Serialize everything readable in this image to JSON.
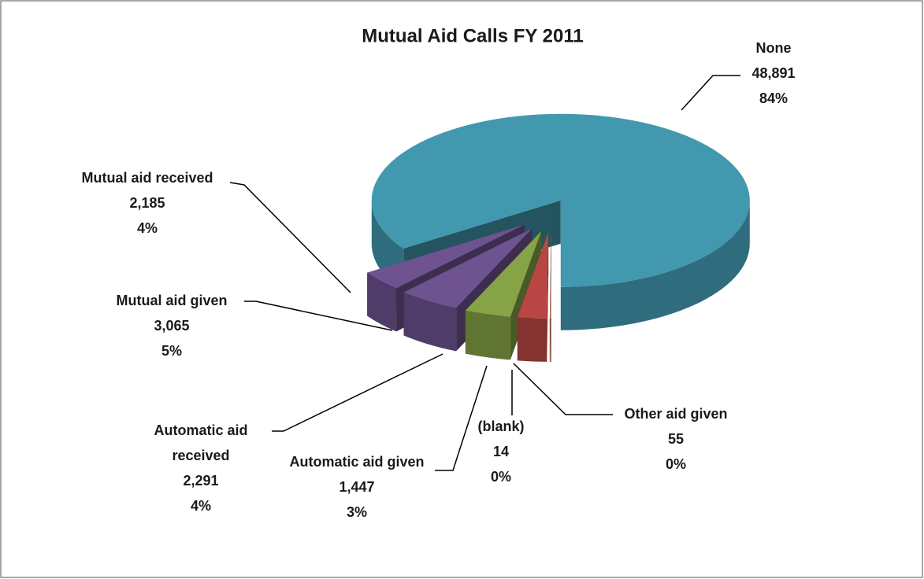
{
  "chart_data": {
    "type": "pie3d",
    "title": "Mutual Aid Calls FY 2011",
    "categories": [
      "None",
      "Other aid given",
      "(blank)",
      "Automatic aid given",
      "Automatic aid received",
      "Mutual aid given",
      "Mutual aid received"
    ],
    "values": [
      48891,
      55,
      14,
      1447,
      2291,
      3065,
      2185
    ],
    "value_labels": [
      "48,891",
      "55",
      "14",
      "1,447",
      "2,291",
      "3,065",
      "2,185"
    ],
    "percent_labels": [
      "84%",
      "0%",
      "0%",
      "3%",
      "4%",
      "5%",
      "4%"
    ],
    "colors": [
      "#4198af",
      "#e8863a",
      "#4a76b0",
      "#b84744",
      "#86a345",
      "#6e5390",
      "#6e5390"
    ]
  }
}
